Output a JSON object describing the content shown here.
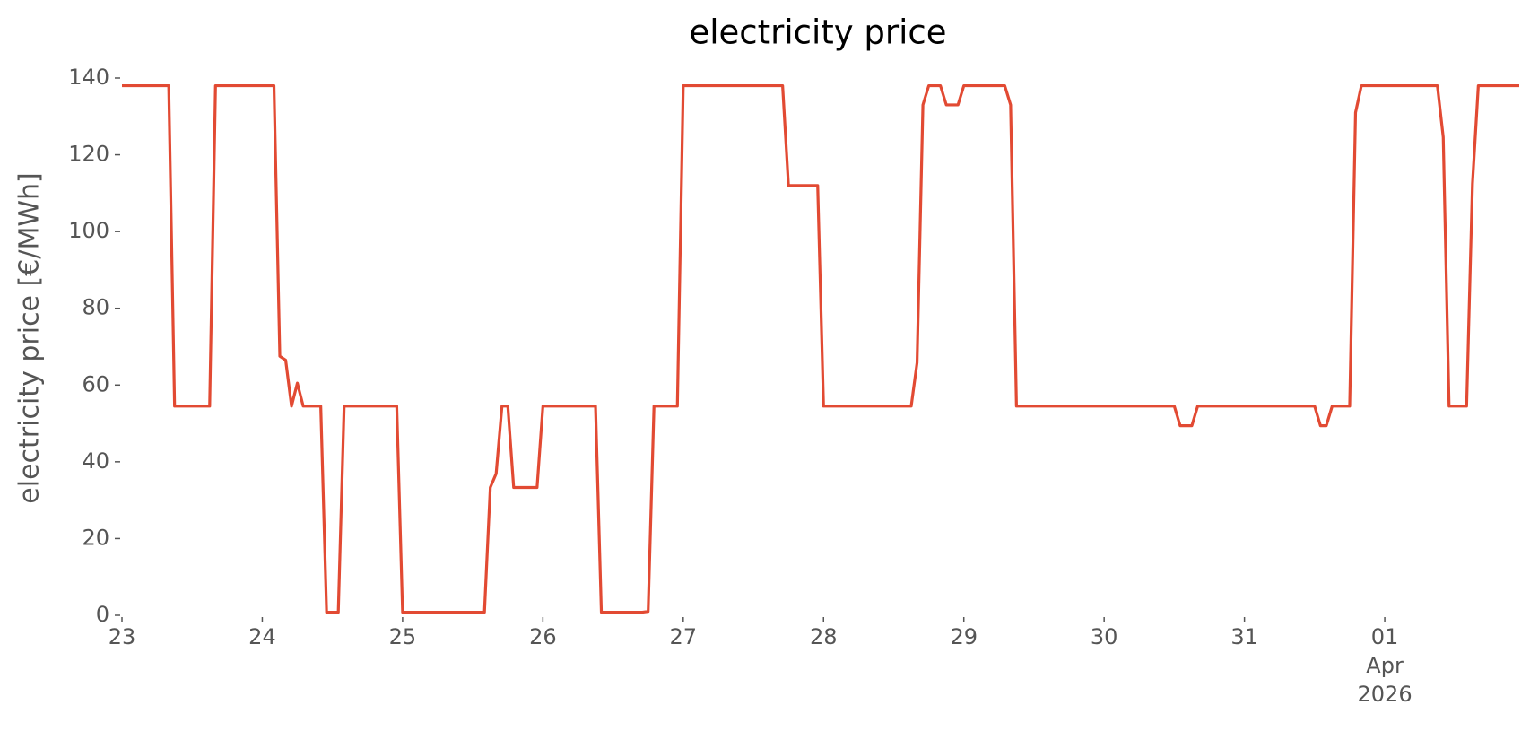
{
  "chart_data": {
    "type": "line",
    "title": "electricity price",
    "ylabel": "electricity price [€/MWh]",
    "x": [
      "2026-03-23T00:00",
      "2026-03-23T08:00",
      "2026-03-23T09:00",
      "2026-03-23T15:00",
      "2026-03-23T16:00",
      "2026-03-24T02:00",
      "2026-03-24T03:00",
      "2026-03-24T04:00",
      "2026-03-24T05:00",
      "2026-03-24T06:00",
      "2026-03-24T07:00",
      "2026-03-24T10:00",
      "2026-03-24T11:00",
      "2026-03-24T13:00",
      "2026-03-24T14:00",
      "2026-03-24T23:00",
      "2026-03-25T00:00",
      "2026-03-25T14:00",
      "2026-03-25T15:00",
      "2026-03-25T16:00",
      "2026-03-25T17:00",
      "2026-03-25T18:00",
      "2026-03-25T19:00",
      "2026-03-25T23:00",
      "2026-03-26T00:00",
      "2026-03-26T09:00",
      "2026-03-26T10:00",
      "2026-03-26T17:00",
      "2026-03-26T18:00",
      "2026-03-26T19:00",
      "2026-03-26T23:00",
      "2026-03-27T00:00",
      "2026-03-27T17:00",
      "2026-03-27T18:00",
      "2026-03-27T23:00",
      "2026-03-28T00:00",
      "2026-03-28T15:00",
      "2026-03-28T16:00",
      "2026-03-28T17:00",
      "2026-03-28T18:00",
      "2026-03-28T20:00",
      "2026-03-28T21:00",
      "2026-03-28T23:00",
      "2026-03-29T00:00",
      "2026-03-29T07:00",
      "2026-03-29T08:00",
      "2026-03-29T09:00",
      "2026-03-30T12:00",
      "2026-03-30T13:00",
      "2026-03-30T15:00",
      "2026-03-30T16:00",
      "2026-03-31T12:00",
      "2026-03-31T13:00",
      "2026-03-31T14:00",
      "2026-03-31T15:00",
      "2026-03-31T18:00",
      "2026-03-31T19:00",
      "2026-03-31T20:00",
      "2026-04-01T09:00",
      "2026-04-01T10:00",
      "2026-04-01T11:00",
      "2026-04-01T14:00",
      "2026-04-01T15:00",
      "2026-04-01T16:00",
      "2026-04-01T23:00"
    ],
    "series": [
      {
        "name": "electricity price",
        "color": "#e24a33",
        "values": [
          138,
          138,
          54.5,
          54.5,
          138,
          138,
          67.5,
          66.5,
          54.5,
          60.5,
          54.5,
          54.5,
          0.8,
          0.8,
          54.5,
          54.5,
          0.8,
          0.8,
          33.3,
          36.9,
          54.5,
          54.5,
          33.3,
          33.3,
          54.5,
          54.5,
          0.8,
          0.8,
          1,
          54.5,
          54.5,
          138,
          138,
          112,
          112,
          54.5,
          54.5,
          65.8,
          133,
          138,
          138,
          133,
          133,
          138,
          138,
          133,
          54.5,
          54.5,
          49.4,
          49.4,
          54.5,
          54.5,
          49.4,
          49.4,
          54.5,
          54.5,
          131,
          138,
          138,
          124.6,
          54.5,
          54.5,
          112.4,
          138,
          138
        ]
      }
    ],
    "xlim": [
      "2026-03-23T00:00",
      "2026-04-01T23:00"
    ],
    "xticks": [
      {
        "value": "2026-03-23T00:00",
        "label": "23"
      },
      {
        "value": "2026-03-24T00:00",
        "label": "24"
      },
      {
        "value": "2026-03-25T00:00",
        "label": "25"
      },
      {
        "value": "2026-03-26T00:00",
        "label": "26"
      },
      {
        "value": "2026-03-27T00:00",
        "label": "27"
      },
      {
        "value": "2026-03-28T00:00",
        "label": "28"
      },
      {
        "value": "2026-03-29T00:00",
        "label": "29"
      },
      {
        "value": "2026-03-30T00:00",
        "label": "30"
      },
      {
        "value": "2026-03-31T00:00",
        "label": "31"
      },
      {
        "value": "2026-04-01T00:00",
        "label": "01\nApr\n2026"
      }
    ],
    "ylim": [
      0,
      140
    ],
    "yticks": [
      0,
      20,
      40,
      60,
      80,
      100,
      120,
      140
    ],
    "grid": false
  }
}
